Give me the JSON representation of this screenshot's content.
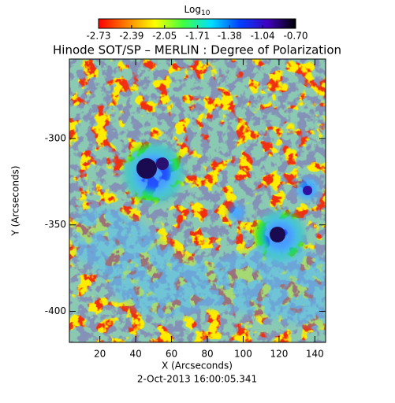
{
  "chart_data": {
    "type": "image",
    "title": "Hinode SOT/SP – MERLIN : Degree of Polarization",
    "subtitle": "2-Oct-2013 16:00:05.341",
    "x_label": "X (Arcseconds)",
    "y_label": "Y (Arcseconds)",
    "xlim": [
      3,
      146
    ],
    "xticks": [
      20,
      40,
      60,
      80,
      100,
      120,
      140
    ],
    "ylim": [
      -418,
      -254
    ],
    "yticks": [
      -300,
      -350,
      -400
    ],
    "colorbar": {
      "title": "Log",
      "title_sub": "10",
      "lim": [
        -2.73,
        -0.7
      ],
      "ticks": [
        -2.73,
        -2.39,
        -2.05,
        -1.71,
        -1.38,
        -1.04,
        {
          "value": -0.7,
          "label": "-0.70"
        }
      ],
      "colors": [
        "#ff0000",
        "#ff8000",
        "#ffff00",
        "#40ff40",
        "#00e0ff",
        "#0040ff",
        "#4000c0",
        "#000000"
      ]
    }
  }
}
